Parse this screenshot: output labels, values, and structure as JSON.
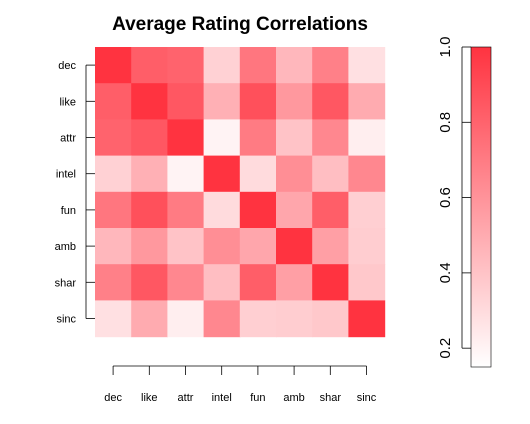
{
  "chart_data": {
    "type": "heatmap",
    "title": "Average Rating Correlations",
    "xlabel": "",
    "ylabel": "",
    "x_categories": [
      "dec",
      "like",
      "attr",
      "intel",
      "fun",
      "amb",
      "shar",
      "sinc"
    ],
    "y_categories": [
      "dec",
      "like",
      "attr",
      "intel",
      "fun",
      "amb",
      "shar",
      "sinc"
    ],
    "values": [
      [
        1.0,
        0.82,
        0.8,
        0.34,
        0.72,
        0.45,
        0.68,
        0.28
      ],
      [
        0.82,
        1.0,
        0.85,
        0.48,
        0.88,
        0.58,
        0.85,
        0.5
      ],
      [
        0.8,
        0.85,
        1.0,
        0.2,
        0.7,
        0.4,
        0.65,
        0.22
      ],
      [
        0.34,
        0.48,
        0.2,
        1.0,
        0.3,
        0.62,
        0.42,
        0.65
      ],
      [
        0.72,
        0.88,
        0.7,
        0.3,
        1.0,
        0.52,
        0.82,
        0.35
      ],
      [
        0.45,
        0.58,
        0.4,
        0.62,
        0.52,
        1.0,
        0.55,
        0.36
      ],
      [
        0.68,
        0.85,
        0.65,
        0.42,
        0.82,
        0.55,
        1.0,
        0.38
      ],
      [
        0.28,
        0.5,
        0.22,
        0.65,
        0.35,
        0.36,
        0.38,
        1.0
      ]
    ],
    "colorbar": {
      "range": [
        0.15,
        1.0
      ],
      "ticks": [
        0.2,
        0.4,
        0.6,
        0.8,
        1.0
      ],
      "tick_labels": [
        "0.2",
        "0.4",
        "0.6",
        "0.8",
        "1.0"
      ],
      "color_low": "#ffffff",
      "color_high": "#ff3340"
    },
    "grid": false,
    "legend": "right"
  }
}
